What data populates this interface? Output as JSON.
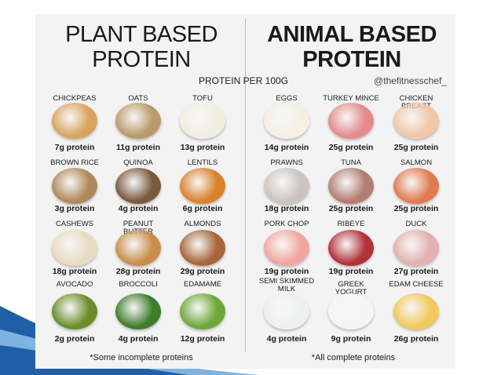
{
  "header": {
    "left_title": [
      "PLANT BASED",
      "PROTEIN"
    ],
    "right_title": [
      "ANIMAL BASED",
      "PROTEIN"
    ],
    "subtitle": "PROTEIN PER 100G",
    "handle": "@thefitnesschef_"
  },
  "plant": [
    {
      "name": "CHICKPEAS",
      "protein": "7g protein"
    },
    {
      "name": "OATS",
      "protein": "11g protein"
    },
    {
      "name": "TOFU",
      "protein": "13g protein"
    },
    {
      "name": "BROWN RICE",
      "protein": "3g protein"
    },
    {
      "name": "QUINOA",
      "protein": "4g protein"
    },
    {
      "name": "LENTILS",
      "protein": "6g protein"
    },
    {
      "name": "CASHEWS",
      "protein": "18g protein"
    },
    {
      "name": "PEANUT BUTTER",
      "protein": "28g protein"
    },
    {
      "name": "ALMONDS",
      "protein": "29g protein"
    },
    {
      "name": "AVOCADO",
      "protein": "2g protein"
    },
    {
      "name": "BROCCOLI",
      "protein": "4g protein"
    },
    {
      "name": "EDAMAME",
      "protein": "12g protein"
    }
  ],
  "animal": [
    {
      "name": "EGGS",
      "protein": "14g protein"
    },
    {
      "name": "TURKEY MINCE",
      "protein": "25g protein"
    },
    {
      "name": "CHICKEN BREAST",
      "protein": "25g protein"
    },
    {
      "name": "PRAWNS",
      "protein": "18g protein"
    },
    {
      "name": "TUNA",
      "protein": "25g protein"
    },
    {
      "name": "SALMON",
      "protein": "25g protein"
    },
    {
      "name": "PORK CHOP",
      "protein": "19g protein"
    },
    {
      "name": "RIBEYE",
      "protein": "19g protein"
    },
    {
      "name": "DUCK",
      "protein": "27g protein"
    },
    {
      "name": "SEMI SKIMMED MILK",
      "protein": "4g protein"
    },
    {
      "name": "GREEK YOGURT",
      "protein": "9g protein"
    },
    {
      "name": "EDAM CHEESE",
      "protein": "26g protein"
    }
  ],
  "footnotes": {
    "plant": "*Some incomplete proteins",
    "animal": "*All complete proteins"
  }
}
